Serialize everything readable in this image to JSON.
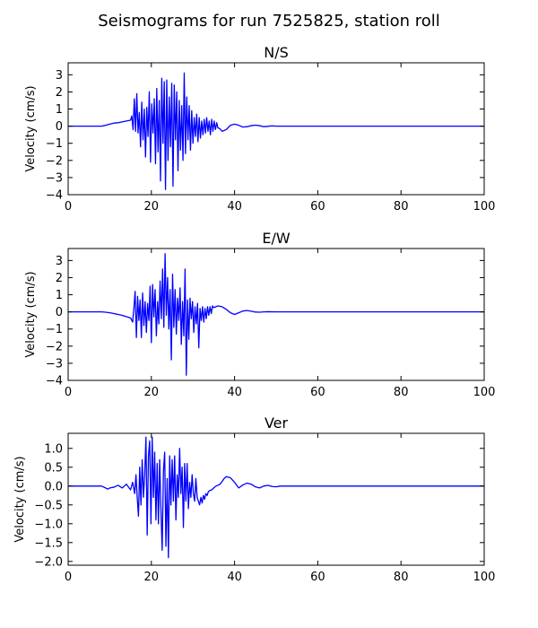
{
  "figure": {
    "suptitle": "Seismograms for run 7525825, station roll"
  },
  "chart_data": [
    {
      "type": "line",
      "title": "N/S",
      "xlabel": "",
      "ylabel": "Velocity (cm/s)",
      "xlim": [
        0,
        100
      ],
      "ylim": [
        -4,
        3.7
      ],
      "xticks": [
        0,
        20,
        40,
        60,
        80,
        100
      ],
      "yticks": [
        -4,
        -3,
        -2,
        -1,
        0,
        1,
        2,
        3
      ],
      "color": "#0000ff",
      "x": [
        0,
        8,
        9,
        10,
        11,
        12,
        13,
        14,
        15,
        15.3,
        15.6,
        15.9,
        16.2,
        16.5,
        16.8,
        17.1,
        17.4,
        17.7,
        18,
        18.3,
        18.6,
        18.9,
        19.2,
        19.5,
        19.8,
        20.1,
        20.4,
        20.7,
        21,
        21.3,
        21.6,
        21.9,
        22.2,
        22.5,
        22.8,
        23.1,
        23.4,
        23.7,
        24,
        24.3,
        24.6,
        24.9,
        25.2,
        25.5,
        25.8,
        26.1,
        26.4,
        26.7,
        27,
        27.3,
        27.6,
        27.9,
        28.2,
        28.5,
        28.8,
        29.1,
        29.4,
        29.7,
        30,
        30.3,
        30.6,
        30.9,
        31.2,
        31.5,
        31.8,
        32.1,
        32.4,
        32.7,
        33,
        33.3,
        33.6,
        33.9,
        34.2,
        34.5,
        34.8,
        35.1,
        35.4,
        35.7,
        36,
        36.5,
        37,
        38,
        39,
        40,
        41,
        42,
        43,
        44,
        45,
        46,
        47,
        48,
        49,
        50,
        52,
        100
      ],
      "y": [
        0,
        0,
        0.05,
        0.12,
        0.18,
        0.2,
        0.25,
        0.3,
        0.35,
        0.6,
        -0.2,
        1.6,
        -0.3,
        1.9,
        -0.4,
        0.8,
        -1.2,
        1.4,
        -0.8,
        1.0,
        -1.8,
        1.1,
        -0.6,
        2.0,
        -2.1,
        1.3,
        -0.4,
        1.6,
        -2.2,
        2.2,
        -1.5,
        1.5,
        -3.2,
        2.8,
        -1.0,
        2.6,
        -3.7,
        2.7,
        -2.0,
        1.7,
        -1.2,
        2.5,
        -3.5,
        2.4,
        -0.8,
        2.0,
        -2.6,
        1.5,
        -1.4,
        1.2,
        -2.0,
        3.1,
        -1.6,
        1.7,
        -0.8,
        1.2,
        -1.4,
        0.9,
        -1.0,
        0.5,
        -0.6,
        0.7,
        -0.9,
        0.5,
        -0.7,
        0.3,
        -0.5,
        0.4,
        -0.4,
        0.5,
        -0.3,
        0.3,
        -0.5,
        0.4,
        -0.3,
        0.3,
        -0.2,
        0.2,
        -0.1,
        -0.15,
        -0.3,
        -0.2,
        0.05,
        0.12,
        0.05,
        -0.05,
        -0.03,
        0.03,
        0.06,
        0.03,
        -0.03,
        -0.01,
        0.02,
        0,
        0,
        0
      ]
    },
    {
      "type": "line",
      "title": "E/W",
      "xlabel": "",
      "ylabel": "Velocity (cm/s)",
      "xlim": [
        0,
        100
      ],
      "ylim": [
        -4,
        3.7
      ],
      "xticks": [
        0,
        20,
        40,
        60,
        80,
        100
      ],
      "yticks": [
        -4,
        -3,
        -2,
        -1,
        0,
        1,
        2,
        3
      ],
      "color": "#0000ff",
      "x": [
        0,
        8,
        9,
        10,
        11,
        12,
        13,
        14,
        15,
        15.5,
        15.8,
        16.1,
        16.4,
        16.7,
        17,
        17.3,
        17.6,
        17.9,
        18.2,
        18.5,
        18.8,
        19.1,
        19.4,
        19.7,
        20,
        20.3,
        20.6,
        20.9,
        21.2,
        21.5,
        21.8,
        22.1,
        22.4,
        22.7,
        23,
        23.3,
        23.6,
        23.9,
        24.2,
        24.5,
        24.8,
        25.1,
        25.4,
        25.7,
        26,
        26.3,
        26.6,
        26.9,
        27.2,
        27.5,
        27.8,
        28.1,
        28.4,
        28.7,
        29,
        29.3,
        29.6,
        29.9,
        30.2,
        30.5,
        30.8,
        31.1,
        31.4,
        31.7,
        32,
        32.3,
        32.6,
        32.9,
        33.2,
        33.5,
        33.8,
        34.1,
        34.4,
        34.7,
        35,
        35.5,
        36,
        37,
        38,
        39,
        40,
        41,
        42,
        43,
        44,
        45,
        46,
        47,
        48,
        50,
        52,
        100
      ],
      "y": [
        0,
        0,
        -0.02,
        -0.05,
        -0.1,
        -0.15,
        -0.2,
        -0.28,
        -0.35,
        -0.6,
        0.2,
        1.2,
        -1.5,
        0.9,
        -0.5,
        0.7,
        -1.5,
        1.1,
        -0.8,
        0.6,
        -1.2,
        0.5,
        -0.5,
        1.5,
        -1.8,
        1.6,
        -0.3,
        1.3,
        -1.4,
        0.6,
        -0.7,
        1.8,
        -0.4,
        2.5,
        -0.9,
        3.4,
        -0.2,
        2.0,
        -1.0,
        1.3,
        -2.8,
        2.2,
        -0.9,
        1.3,
        -1.3,
        0.8,
        -0.5,
        1.4,
        -1.9,
        0.6,
        -1.4,
        2.5,
        -3.7,
        0.7,
        -1.6,
        0.8,
        -0.4,
        0.6,
        -1.2,
        0.3,
        -0.7,
        0.5,
        -2.1,
        0.2,
        -0.5,
        0.3,
        -0.6,
        0.2,
        -0.4,
        0.3,
        -0.2,
        0.3,
        -0.1,
        0.35,
        0.25,
        0.3,
        0.35,
        0.3,
        0.15,
        -0.05,
        -0.15,
        -0.05,
        0.05,
        0.08,
        0.04,
        -0.01,
        -0.02,
        0,
        0.01,
        0,
        0,
        0
      ]
    },
    {
      "type": "line",
      "title": "Ver",
      "xlabel": "",
      "ylabel": "Velocity (cm/s)",
      "xlim": [
        0,
        100
      ],
      "ylim": [
        -2.1,
        1.4
      ],
      "xticks": [
        0,
        20,
        40,
        60,
        80,
        100
      ],
      "yticks": [
        -2.0,
        -1.5,
        -1.0,
        -0.5,
        0.0,
        0.5,
        1.0
      ],
      "color": "#0000ff",
      "x": [
        0,
        8,
        9,
        9.5,
        10,
        11,
        12,
        13,
        14,
        15,
        15.5,
        16,
        16.3,
        16.6,
        16.9,
        17.2,
        17.5,
        17.8,
        18.1,
        18.4,
        18.7,
        19,
        19.3,
        19.6,
        19.9,
        20.2,
        20.5,
        20.8,
        21.1,
        21.4,
        21.7,
        22,
        22.3,
        22.6,
        22.9,
        23.2,
        23.5,
        23.8,
        24.1,
        24.4,
        24.7,
        25,
        25.3,
        25.6,
        25.9,
        26.2,
        26.5,
        26.8,
        27.1,
        27.4,
        27.7,
        28,
        28.3,
        28.6,
        28.9,
        29.2,
        29.5,
        29.8,
        30.1,
        30.4,
        30.7,
        31,
        31.3,
        31.6,
        31.9,
        32.2,
        32.5,
        32.8,
        33.1,
        33.4,
        33.7,
        34,
        34.5,
        35,
        35.5,
        36,
        36.5,
        37,
        37.5,
        38,
        39,
        40,
        41,
        42,
        43,
        44,
        45,
        46,
        47,
        48,
        49,
        50,
        51,
        52,
        54,
        100
      ],
      "y": [
        0,
        0,
        -0.05,
        -0.08,
        -0.05,
        -0.03,
        0.02,
        -0.05,
        0.05,
        -0.1,
        0.1,
        -0.2,
        0.3,
        -0.3,
        -0.8,
        0.5,
        -0.5,
        0.7,
        -0.3,
        0.3,
        1.3,
        -1.3,
        0.8,
        1.2,
        -1.0,
        1.3,
        -0.3,
        0.9,
        -0.9,
        0.6,
        -1.0,
        0.7,
        -0.6,
        -1.7,
        0.4,
        0.9,
        -1.6,
        0.2,
        -1.9,
        0.8,
        -0.5,
        0.7,
        -0.4,
        0.8,
        -0.9,
        0.3,
        -0.3,
        1.0,
        -0.2,
        0.5,
        -1.1,
        0.6,
        -0.4,
        0.6,
        -0.6,
        0.1,
        -0.3,
        0.3,
        -0.2,
        -0.4,
        0.2,
        -0.3,
        -0.4,
        -0.5,
        -0.3,
        -0.45,
        -0.25,
        -0.35,
        -0.2,
        -0.25,
        -0.15,
        -0.12,
        -0.1,
        -0.05,
        0,
        0.02,
        0.05,
        0.12,
        0.2,
        0.25,
        0.22,
        0.1,
        -0.05,
        0.03,
        0.08,
        0.05,
        -0.02,
        -0.05,
        0,
        0.02,
        -0.01,
        -0.02,
        0,
        0,
        0,
        0
      ]
    }
  ]
}
